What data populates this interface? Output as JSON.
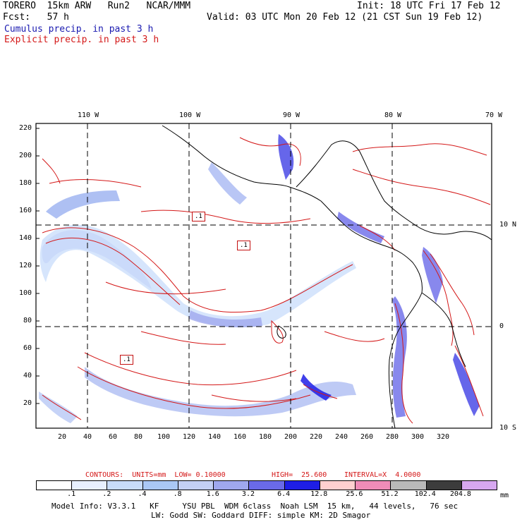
{
  "header": {
    "model": "TORERO  15km ARW   Run2   NCAR/MMM",
    "init": "Init: 18 UTC Fri 17 Feb 12",
    "fcst": "Fcst:   57 h",
    "valid": "Valid: 03 UTC Mon 20 Feb 12 (21 CST Sun 19 Feb 12)",
    "legend_cumulus": "Cumulus precip. in past 3 h",
    "legend_explicit": "Explicit precip. in past 3 h"
  },
  "colors": {
    "cumulus": "#1a1ab0",
    "explicit": "#d41818"
  },
  "axes": {
    "top_lon": [
      "110 W",
      "100 W",
      "90 W",
      "80 W",
      "70 W"
    ],
    "right_lat": [
      "10 N",
      "0",
      "10 S"
    ],
    "left_y": [
      "220",
      "200",
      "180",
      "160",
      "140",
      "120",
      "100",
      "80",
      "60",
      "40",
      "20"
    ],
    "bottom_x": [
      "20",
      "40",
      "60",
      "80",
      "100",
      "120",
      "140",
      "160",
      "180",
      "200",
      "220",
      "240",
      "260",
      "280",
      "300",
      "320"
    ]
  },
  "contour_labels": [
    ".1",
    ".1",
    ".1"
  ],
  "contour_info": {
    "units": "CONTOURS:  UNITS=mm  LOW= 0.10000",
    "high": "HIGH=  25.600",
    "interval": "INTERVAL=X  4.0000"
  },
  "colorbar": {
    "labels": [
      ".1",
      ".2",
      ".4",
      ".8",
      "1.6",
      "3.2",
      "6.4",
      "12.8",
      "25.6",
      "51.2",
      "102.4",
      "204.8"
    ],
    "unit": "mm",
    "colors": [
      "#ffffff",
      "#e8f0ff",
      "#c8dcfa",
      "#aac8f5",
      "#c4d0f5",
      "#9fa8ee",
      "#6a6ae8",
      "#1e1ee6",
      "#ffd0d0",
      "#f08cb8",
      "#b9b9b9",
      "#3c3c3c",
      "#d7a8f0"
    ]
  },
  "model_info": {
    "line1": "Model Info: V3.3.1   KF     YSU PBL  WDM 6class  Noah LSM  15 km,   44 levels,   76 sec",
    "line2": "LW: Godd SW: Goddard DIFF: simple KM: 2D Smagor"
  }
}
